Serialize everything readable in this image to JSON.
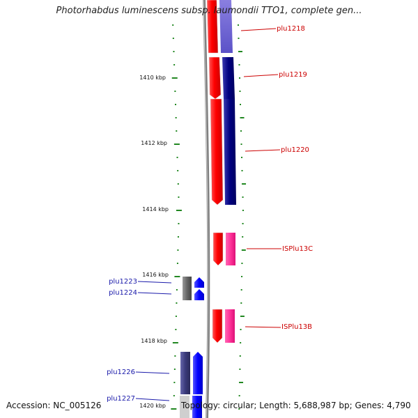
{
  "title": "Photorhabdus luminescens subsp. laumondii TTO1, complete gen...",
  "footer": {
    "accession": "Accession: NC_005126",
    "summary": "Topology: circular; Length: 5,688,987 bp; Genes: 4,790"
  },
  "ruler": {
    "unit": "kbp",
    "labels": [
      "1410 kbp",
      "1412 kbp",
      "1414 kbp",
      "1416 kbp",
      "1418 kbp",
      "1420 kbp"
    ]
  },
  "features": [
    {
      "name": "plu1218",
      "color": "#cc0000"
    },
    {
      "name": "plu1219",
      "color": "#cc0000"
    },
    {
      "name": "plu1220",
      "color": "#cc0000"
    },
    {
      "name": "ISPlu13C",
      "color": "#cc0000"
    },
    {
      "name": "ISPlu13B",
      "color": "#cc0000"
    },
    {
      "name": "plu1223",
      "color": "#1a1aaa"
    },
    {
      "name": "plu1224",
      "color": "#1a1aaa"
    },
    {
      "name": "plu1226",
      "color": "#1a1aaa"
    },
    {
      "name": "plu1227",
      "color": "#1a1aaa"
    }
  ],
  "colors": {
    "forward_gene": "#ff0000",
    "reverse_gene": "#000080",
    "insertion_sequence": "#ff3399",
    "blue_gene": "#0000ff",
    "gray_gene": "#666666",
    "purple_gene": "#3a3a7a",
    "tick": "#228822",
    "backbone": "#808080"
  }
}
